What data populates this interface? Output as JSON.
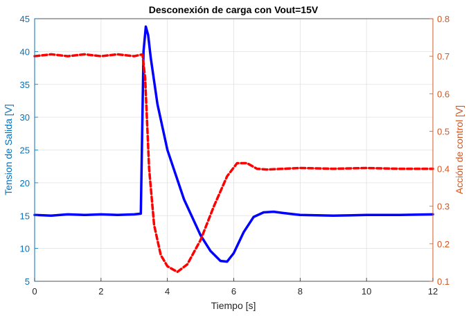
{
  "chart_data": {
    "type": "line",
    "title": "Desconexión de carga con Vout=15V",
    "xlabel": "Tiempo [s]",
    "ylabel_left": "Tension de Salida [V]",
    "ylabel_right": "Acción de control [V]",
    "xlim": [
      0,
      12
    ],
    "ylim_left": [
      5,
      45
    ],
    "ylim_right": [
      0.1,
      0.8
    ],
    "xticks": [
      "0",
      "2",
      "4",
      "6",
      "8",
      "10",
      "12"
    ],
    "yticks_left": [
      "5",
      "10",
      "15",
      "20",
      "25",
      "30",
      "35",
      "40",
      "45"
    ],
    "yticks_right": [
      "0.1",
      "0.2",
      "0.3",
      "0.4",
      "0.5",
      "0.6",
      "0.7",
      "0.8"
    ],
    "grid": true,
    "colors": {
      "left_axis": "#0072BD",
      "right_axis": "#D95319",
      "tension_series": "#0000FF",
      "control_series": "#FF0000",
      "grid": "#E0E0E0",
      "frame": "#262626"
    },
    "series": [
      {
        "axis": "left",
        "style": "solid",
        "x": [
          0,
          0.5,
          1.0,
          1.5,
          2.0,
          2.5,
          3.0,
          3.2,
          3.28,
          3.35,
          3.42,
          3.5,
          3.7,
          4.0,
          4.5,
          5.0,
          5.3,
          5.6,
          5.8,
          6.0,
          6.3,
          6.6,
          6.9,
          7.2,
          7.5,
          8.0,
          9.0,
          10.0,
          11.0,
          12.0
        ],
        "y": [
          15.1,
          15.0,
          15.2,
          15.1,
          15.2,
          15.1,
          15.2,
          15.3,
          40.0,
          43.8,
          42.5,
          39.0,
          32.0,
          25.0,
          17.5,
          12.0,
          9.6,
          8.1,
          8.0,
          9.3,
          12.5,
          14.8,
          15.5,
          15.6,
          15.4,
          15.1,
          15.0,
          15.1,
          15.1,
          15.2
        ]
      },
      {
        "axis": "right",
        "style": "dashed",
        "x": [
          0,
          0.5,
          1.0,
          1.5,
          2.0,
          2.5,
          3.0,
          3.25,
          3.33,
          3.45,
          3.6,
          3.8,
          4.0,
          4.3,
          4.6,
          5.0,
          5.4,
          5.8,
          6.1,
          6.4,
          6.7,
          7.0,
          7.5,
          8.0,
          9.0,
          10.0,
          11.0,
          12.0
        ],
        "y": [
          0.7,
          0.705,
          0.7,
          0.705,
          0.7,
          0.705,
          0.7,
          0.705,
          0.64,
          0.4,
          0.25,
          0.17,
          0.14,
          0.125,
          0.145,
          0.21,
          0.3,
          0.38,
          0.415,
          0.415,
          0.4,
          0.398,
          0.4,
          0.402,
          0.4,
          0.402,
          0.4,
          0.4
        ]
      }
    ]
  }
}
